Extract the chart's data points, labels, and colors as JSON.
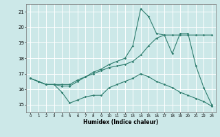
{
  "xlabel": "Humidex (Indice chaleur)",
  "xlim": [
    -0.5,
    23.5
  ],
  "ylim": [
    14.5,
    21.5
  ],
  "yticks": [
    15,
    16,
    17,
    18,
    19,
    20,
    21
  ],
  "xticks": [
    0,
    1,
    2,
    3,
    4,
    5,
    6,
    7,
    8,
    9,
    10,
    11,
    12,
    13,
    14,
    15,
    16,
    17,
    18,
    19,
    20,
    21,
    22,
    23
  ],
  "bg_color": "#cce8e8",
  "line_color": "#2e7d6e",
  "grid_color": "#ffffff",
  "series1_x": [
    0,
    1,
    2,
    3,
    4,
    5,
    6,
    7,
    8,
    9,
    10,
    11,
    12,
    13,
    14,
    15,
    16,
    17,
    18,
    19,
    20,
    21,
    22,
    23
  ],
  "series1_y": [
    16.7,
    16.5,
    16.3,
    16.3,
    15.8,
    15.1,
    15.3,
    15.5,
    15.6,
    15.6,
    16.1,
    16.3,
    16.5,
    16.7,
    17.0,
    16.8,
    16.5,
    16.3,
    16.1,
    15.8,
    15.6,
    15.4,
    15.2,
    14.9
  ],
  "series2_x": [
    0,
    1,
    2,
    3,
    4,
    5,
    6,
    7,
    8,
    9,
    10,
    11,
    12,
    13,
    14,
    15,
    16,
    17,
    18,
    19,
    20,
    21,
    22,
    23
  ],
  "series2_y": [
    16.7,
    16.5,
    16.3,
    16.3,
    16.2,
    16.2,
    16.5,
    16.8,
    17.0,
    17.2,
    17.4,
    17.5,
    17.6,
    17.8,
    18.2,
    18.8,
    19.3,
    19.5,
    18.3,
    19.6,
    19.6,
    17.5,
    16.1,
    15.0
  ],
  "series3_x": [
    0,
    1,
    2,
    3,
    4,
    5,
    6,
    7,
    8,
    9,
    10,
    11,
    12,
    13,
    14,
    15,
    16,
    17,
    18,
    19,
    20,
    21,
    22,
    23
  ],
  "series3_y": [
    16.7,
    16.5,
    16.3,
    16.3,
    16.3,
    16.3,
    16.6,
    16.8,
    17.1,
    17.3,
    17.6,
    17.8,
    18.0,
    18.8,
    21.2,
    20.7,
    19.6,
    19.5,
    19.5,
    19.5,
    19.5,
    19.5,
    19.5,
    19.5
  ]
}
